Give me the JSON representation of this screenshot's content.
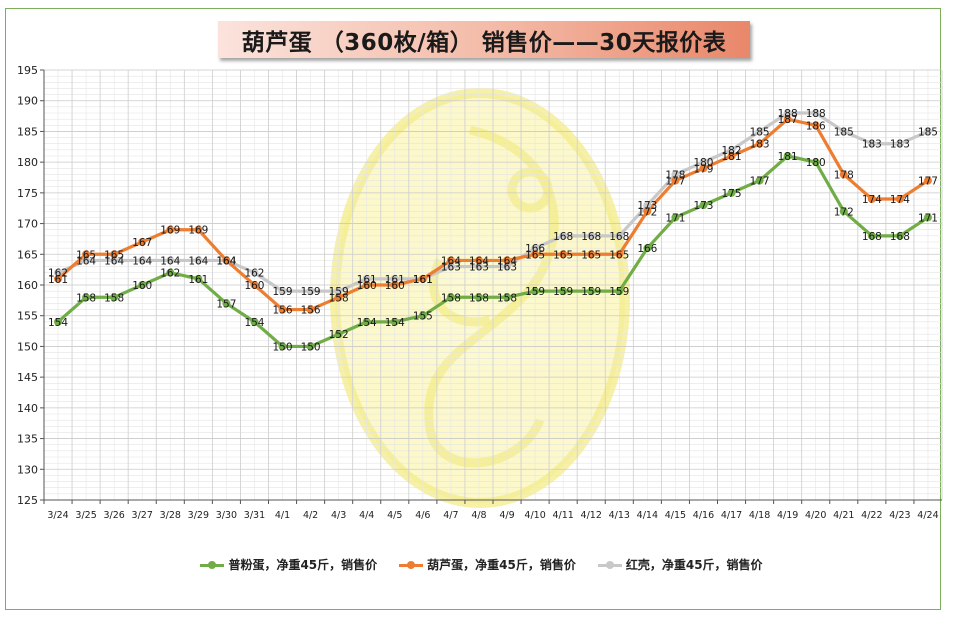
{
  "title": "葫芦蛋 （360枚/箱） 销售价——30天报价表",
  "chart_data": {
    "type": "line",
    "categories": [
      "3/24",
      "3/25",
      "3/26",
      "3/27",
      "3/28",
      "3/29",
      "3/30",
      "3/31",
      "4/1",
      "4/2",
      "4/3",
      "4/4",
      "4/5",
      "4/6",
      "4/7",
      "4/8",
      "4/9",
      "4/10",
      "4/11",
      "4/12",
      "4/13",
      "4/14",
      "4/15",
      "4/16",
      "4/17",
      "4/18",
      "4/19",
      "4/20",
      "4/21",
      "4/22",
      "4/23",
      "4/24"
    ],
    "ylim": [
      125,
      195
    ],
    "yticks": [
      125,
      130,
      135,
      140,
      145,
      150,
      155,
      160,
      165,
      170,
      175,
      180,
      185,
      190,
      195
    ],
    "grid": true,
    "legend_position": "bottom",
    "series": [
      {
        "name": "红壳，净重45斤，销售价",
        "color": "#c8c8c8",
        "values": [
          162,
          164,
          164,
          164,
          164,
          164,
          164,
          162,
          159,
          159,
          159,
          161,
          161,
          161,
          163,
          163,
          163,
          166,
          168,
          168,
          168,
          173,
          178,
          180,
          182,
          185,
          188,
          188,
          185,
          183,
          183,
          185
        ]
      },
      {
        "name": "葫芦蛋，净重45斤，销售价",
        "color": "#ed7d31",
        "values": [
          161,
          165,
          165,
          167,
          169,
          169,
          164,
          160,
          156,
          156,
          158,
          160,
          160,
          161,
          164,
          164,
          164,
          165,
          165,
          165,
          165,
          172,
          177,
          179,
          181,
          183,
          187,
          186,
          178,
          174,
          174,
          177
        ]
      },
      {
        "name": "普粉蛋，净重45斤，销售价",
        "color": "#70ad47",
        "values": [
          154,
          158,
          158,
          160,
          162,
          161,
          157,
          154,
          150,
          150,
          152,
          154,
          154,
          155,
          158,
          158,
          158,
          159,
          159,
          159,
          159,
          166,
          171,
          173,
          175,
          177,
          181,
          180,
          172,
          168,
          168,
          171
        ]
      }
    ],
    "legend_order": [
      2,
      1,
      0
    ]
  }
}
